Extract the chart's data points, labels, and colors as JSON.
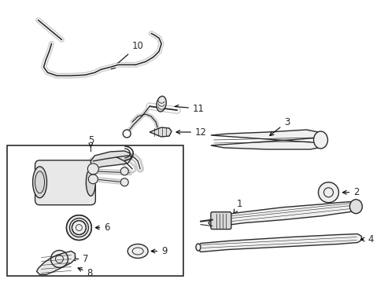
{
  "bg_color": "#ffffff",
  "lc": "#2a2a2a",
  "fig_w": 4.89,
  "fig_h": 3.6,
  "dpi": 100,
  "labels": {
    "1": [
      0.6,
      0.505,
      0.57,
      0.49
    ],
    "2": [
      0.92,
      0.43,
      0.88,
      0.435
    ],
    "3": [
      0.66,
      0.27,
      0.63,
      0.285
    ],
    "4": [
      0.96,
      0.395,
      0.91,
      0.4
    ],
    "5": [
      0.23,
      0.388,
      0.2,
      0.4
    ],
    "6": [
      0.225,
      0.625,
      0.195,
      0.63
    ],
    "7": [
      0.215,
      0.7,
      0.185,
      0.705
    ],
    "8": [
      0.2,
      0.775,
      0.16,
      0.778
    ],
    "9": [
      0.34,
      0.7,
      0.31,
      0.7
    ],
    "10": [
      0.34,
      0.11,
      0.285,
      0.13
    ],
    "11": [
      0.4,
      0.29,
      0.365,
      0.305
    ],
    "12": [
      0.415,
      0.36,
      0.38,
      0.37
    ]
  }
}
